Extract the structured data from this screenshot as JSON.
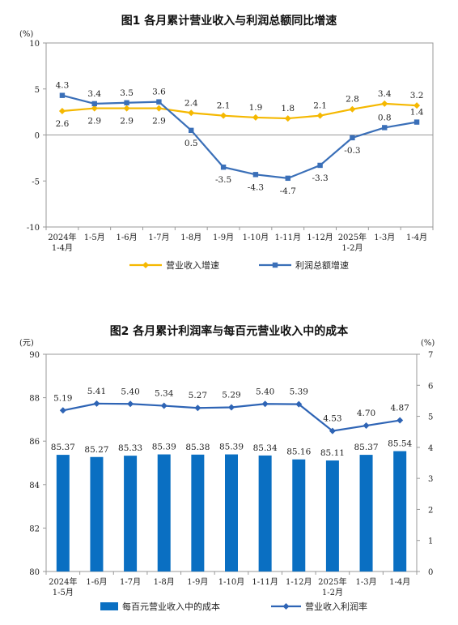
{
  "chart_data": [
    {
      "type": "line",
      "title": "图1  各月累计营业收入与利润总额同比增速",
      "unit_label": "(%)",
      "ylim": [
        -10,
        10
      ],
      "yticks": [
        -10,
        -5,
        0,
        5,
        10
      ],
      "categories": [
        [
          "2024年",
          "1-4月"
        ],
        [
          "1-5月"
        ],
        [
          "1-6月"
        ],
        [
          "1-7月"
        ],
        [
          "1-8月"
        ],
        [
          "1-9月"
        ],
        [
          "1-10月"
        ],
        [
          "1-11月"
        ],
        [
          "1-12月"
        ],
        [
          "2025年",
          "1-2月"
        ],
        [
          "1-3月"
        ],
        [
          "1-4月"
        ]
      ],
      "series": [
        {
          "name": "营业收入增速",
          "color": "#F5B800",
          "marker": "diamond",
          "values": [
            2.6,
            2.9,
            2.9,
            2.9,
            2.4,
            2.1,
            1.9,
            1.8,
            2.1,
            2.8,
            3.4,
            3.2
          ],
          "labels": [
            "2.6",
            "2.9",
            "2.9",
            "2.9",
            "2.4",
            "2.1",
            "1.9",
            "1.8",
            "2.1",
            "2.8",
            "3.4",
            "3.2"
          ]
        },
        {
          "name": "利润总额增速",
          "color": "#3A6FB8",
          "marker": "square",
          "values": [
            4.3,
            3.4,
            3.5,
            3.6,
            0.5,
            -3.5,
            -4.3,
            -4.7,
            -3.3,
            -0.3,
            0.8,
            1.4
          ],
          "labels": [
            "4.3",
            "3.4",
            "3.5",
            "3.6",
            "0.5",
            "-3.5",
            "-4.3",
            "-4.7",
            "-3.3",
            "-0.3",
            "0.8",
            "1.4"
          ]
        }
      ]
    },
    {
      "type": "bar",
      "title": "图2  各月累计利润率与每百元营业收入中的成本",
      "left_unit_label": "(元)",
      "right_unit_label": "(%)",
      "ylim_left": [
        80,
        90
      ],
      "yticks_left": [
        80,
        82,
        84,
        86,
        88,
        90
      ],
      "ylim_right": [
        0,
        7
      ],
      "yticks_right": [
        0,
        1,
        2,
        3,
        4,
        5,
        6,
        7
      ],
      "categories": [
        [
          "2024年",
          "1-5月"
        ],
        [
          "1-6月"
        ],
        [
          "1-7月"
        ],
        [
          "1-8月"
        ],
        [
          "1-9月"
        ],
        [
          "1-10月"
        ],
        [
          "1-11月"
        ],
        [
          "1-12月"
        ],
        [
          "2025年",
          "1-2月"
        ],
        [
          "1-3月"
        ],
        [
          "1-4月"
        ]
      ],
      "series": [
        {
          "name": "每百元营业收入中的成本",
          "kind": "bar",
          "axis": "left",
          "color": "#0A6FC2",
          "values": [
            85.37,
            85.27,
            85.33,
            85.39,
            85.38,
            85.39,
            85.34,
            85.16,
            85.11,
            85.37,
            85.54
          ],
          "labels": [
            "85.37",
            "85.27",
            "85.33",
            "85.39",
            "85.38",
            "85.39",
            "85.34",
            "85.16",
            "85.11",
            "85.37",
            "85.54"
          ]
        },
        {
          "name": "营业收入利润率",
          "kind": "line",
          "axis": "right",
          "color": "#2E64B5",
          "marker": "diamond",
          "values": [
            5.19,
            5.41,
            5.4,
            5.34,
            5.27,
            5.29,
            5.4,
            5.39,
            4.53,
            4.7,
            4.87
          ],
          "labels": [
            "5.19",
            "5.41",
            "5.40",
            "5.34",
            "5.27",
            "5.29",
            "5.40",
            "5.39",
            "4.53",
            "4.70",
            "4.87"
          ]
        }
      ]
    }
  ]
}
